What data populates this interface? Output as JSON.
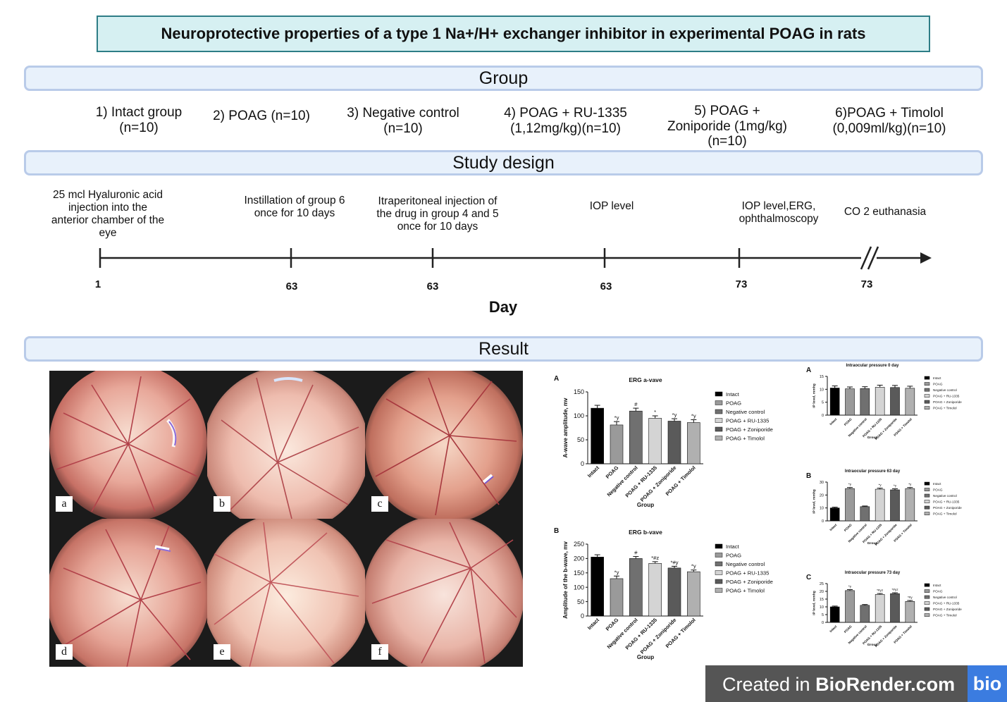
{
  "title": "Neuroprotective properties of a type 1 Na+/H+ exchanger inhibitor in experimental POAG in rats",
  "sections": {
    "group": "Group",
    "study_design": "Study design",
    "result": "Result"
  },
  "groups": [
    {
      "line1": "1) Intact group",
      "line2": "(n=10)",
      "line3": ""
    },
    {
      "line1": "2) POAG (n=10)",
      "line2": "",
      "line3": ""
    },
    {
      "line1": "3) Negative control",
      "line2": "(n=10)",
      "line3": ""
    },
    {
      "line1": "4) POAG + RU-1335",
      "line2": "(1,12mg/kg)(n=10)",
      "line3": ""
    },
    {
      "line1": "5) POAG +",
      "line2": "Zoniporide (1mg/kg)",
      "line3": "(n=10)"
    },
    {
      "line1": "6)POAG + Timolol",
      "line2": "(0,009ml/kg)(n=10)",
      "line3": ""
    }
  ],
  "timeline": {
    "axis_label": "Day",
    "steps": [
      {
        "lines": [
          "25 mcl Hyaluronic acid",
          "injection into the",
          "anterior chamber of the",
          "eye"
        ],
        "day": "1"
      },
      {
        "lines": [
          "Instillation of group 6",
          "once for 10 days"
        ],
        "day": "63"
      },
      {
        "lines": [
          "Itraperitoneal injection of",
          "the drug in group 4 and 5",
          "once for 10 days"
        ],
        "day": "63"
      },
      {
        "lines": [
          "IOP level"
        ],
        "day": "63"
      },
      {
        "lines": [
          "IOP level,ERG,",
          "ophthalmoscopy"
        ],
        "day": "73"
      },
      {
        "lines": [
          "CO 2 euthanasia"
        ],
        "day": "73"
      }
    ]
  },
  "photo_labels": [
    "a",
    "b",
    "c",
    "d",
    "e",
    "f"
  ],
  "chart_data": [
    {
      "panel": "A",
      "type": "bar",
      "title": "ERG a-vave",
      "ylabel": "A-wave amplitude, mv",
      "xlabel": "Group",
      "ylim": [
        0,
        150
      ],
      "yticks": [
        0,
        50,
        100,
        150
      ],
      "categories": [
        "Intact",
        "POAG",
        "Negative control",
        "POAG + RU-1335",
        "POAG + Zoniporide",
        "POAG + Timolol"
      ],
      "values": [
        116,
        81,
        110,
        95,
        89,
        86
      ],
      "errors": [
        6,
        7,
        6,
        5,
        5,
        6
      ],
      "annotations": [
        "",
        "*y",
        "#",
        "*",
        "*y",
        "*y"
      ],
      "colors": [
        "#000000",
        "#9a9a9a",
        "#707070",
        "#d4d4d4",
        "#5a5a5a",
        "#b0b0b0"
      ],
      "legend": [
        "Intact",
        "POAG",
        "Negative control",
        "POAG + RU-1335",
        "POAG + Zoniporide",
        "POAG + Timolol"
      ]
    },
    {
      "panel": "B",
      "type": "bar",
      "title": "ERG b-vave",
      "ylabel": "Amplitude of the b-wave, mv",
      "xlabel": "Group",
      "ylim": [
        0,
        250
      ],
      "yticks": [
        0,
        50,
        100,
        150,
        200,
        250
      ],
      "categories": [
        "Intact",
        "POAG",
        "Negative control",
        "POAG + RU-1335",
        "POAG + Zoniporide",
        "POAG + Timolol"
      ],
      "values": [
        205,
        130,
        200,
        183,
        167,
        154
      ],
      "errors": [
        8,
        9,
        7,
        6,
        6,
        6
      ],
      "annotations": [
        "",
        "*y",
        "#",
        "*#z",
        "*#y",
        "*y"
      ],
      "colors": [
        "#000000",
        "#9a9a9a",
        "#707070",
        "#d4d4d4",
        "#5a5a5a",
        "#b0b0b0"
      ],
      "legend": [
        "Intact",
        "POAG",
        "Negative control",
        "POAG + RU-1335",
        "POAG + Zoniporide",
        "POAG + Timolol"
      ]
    },
    {
      "panel": "A",
      "type": "bar",
      "title": "Intraocular pressure 0 day",
      "ylabel": "IP level, mmhg",
      "xlabel": "Group",
      "ylim": [
        0,
        15
      ],
      "yticks": [
        0,
        5,
        10,
        15
      ],
      "categories": [
        "Intact",
        "POAG",
        "Negative control",
        "POAG + RU-1335",
        "POAG + Zoniporide",
        "POAG + Timolol"
      ],
      "values": [
        10.5,
        10.2,
        10.3,
        10.8,
        10.7,
        10.4
      ],
      "errors": [
        0.8,
        0.7,
        0.7,
        0.8,
        0.8,
        0.8
      ],
      "annotations": [
        "",
        "",
        "",
        "",
        "",
        ""
      ],
      "colors": [
        "#000000",
        "#9a9a9a",
        "#707070",
        "#d4d4d4",
        "#5a5a5a",
        "#b0b0b0"
      ],
      "legend": [
        "Intact",
        "POAG",
        "Negative control",
        "POAG + RU-1335",
        "POAG + Zoniporide",
        "POAG + Timolol"
      ]
    },
    {
      "panel": "B",
      "type": "bar",
      "title": "Intraocular pressure 63 day",
      "ylabel": "IP level, mmhg",
      "xlabel": "Group",
      "ylim": [
        0,
        30
      ],
      "yticks": [
        0,
        10,
        20,
        30
      ],
      "categories": [
        "Intact",
        "POAG",
        "Negative control",
        "POAG + RU-1335",
        "POAG + Zoniporide",
        "POAG + Timolol"
      ],
      "values": [
        10,
        25,
        11,
        24.5,
        24,
        25
      ],
      "errors": [
        0.6,
        0.8,
        0.5,
        0.8,
        0.8,
        0.8
      ],
      "annotations": [
        "",
        "*y",
        "",
        "*y",
        "*y",
        "*y"
      ],
      "colors": [
        "#000000",
        "#9a9a9a",
        "#707070",
        "#d4d4d4",
        "#5a5a5a",
        "#b0b0b0"
      ],
      "legend": [
        "Intact",
        "POAG",
        "Negative control",
        "POAG + RU-1335",
        "POAG + Zoniporide",
        "POAG + Timolol"
      ]
    },
    {
      "panel": "C",
      "type": "bar",
      "title": "Intraocular pressure 73 day",
      "ylabel": "IP level, mmhg",
      "xlabel": "Group",
      "ylim": [
        0,
        25
      ],
      "yticks": [
        0,
        5,
        10,
        15,
        20,
        25
      ],
      "categories": [
        "Intact",
        "POAG",
        "Negative control",
        "POAG + RU-1335",
        "POAG + Zoniporide",
        "POAG + Timolol"
      ],
      "values": [
        10,
        20.5,
        11,
        18,
        18.5,
        13.5
      ],
      "errors": [
        0.5,
        0.6,
        0.5,
        0.6,
        0.6,
        0.6
      ],
      "annotations": [
        "",
        "*y",
        "",
        "*#yz",
        "*#yz",
        "*#y"
      ],
      "colors": [
        "#000000",
        "#9a9a9a",
        "#707070",
        "#d4d4d4",
        "#5a5a5a",
        "#b0b0b0"
      ],
      "legend": [
        "Intact",
        "POAG",
        "Negative control",
        "POAG + RU-1335",
        "POAG + Zoniporide",
        "POAG + Timolol"
      ]
    }
  ],
  "watermark": {
    "prefix": "Created in ",
    "brand": "BioRender.com",
    "logo": "bio"
  }
}
